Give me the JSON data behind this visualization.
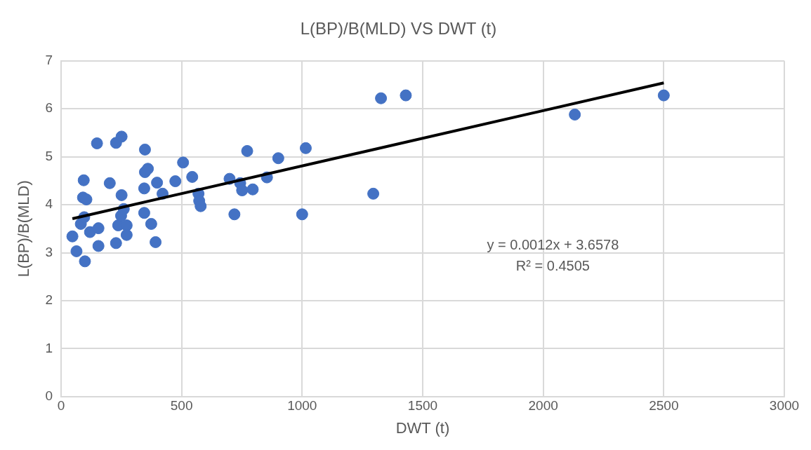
{
  "chart_data": {
    "type": "scatter",
    "title": "L(BP)/B(MLD) VS DWT (t)",
    "xlabel": "DWT (t)",
    "ylabel": "L(BP)/B(MLD)",
    "xlim": [
      0,
      3000
    ],
    "xticks": [
      0,
      500,
      1000,
      1500,
      2000,
      2500,
      3000
    ],
    "ylim": [
      0,
      7
    ],
    "yticks": [
      0,
      1,
      2,
      3,
      4,
      5,
      6,
      7
    ],
    "grid": true,
    "marker": "circle",
    "series": [
      {
        "color": "#4472c4",
        "x": [
          47,
          64,
          99,
          82,
          96,
          94,
          91,
          105,
          120,
          155,
          155,
          149,
          202,
          228,
          251,
          228,
          237,
          251,
          249,
          260,
          272,
          272,
          348,
          345,
          348,
          360,
          345,
          374,
          392,
          398,
          421,
          474,
          506,
          544,
          570,
          573,
          579,
          699,
          719,
          743,
          751,
          772,
          795,
          854,
          901,
          1000,
          1015,
          1295,
          1327,
          1430,
          2131,
          2500
        ],
        "values": [
          3.34,
          3.03,
          2.82,
          3.6,
          3.74,
          4.51,
          4.15,
          4.11,
          3.43,
          3.51,
          3.14,
          5.28,
          4.45,
          5.29,
          5.42,
          3.2,
          3.57,
          4.2,
          3.77,
          3.91,
          3.57,
          3.37,
          5.15,
          4.34,
          4.68,
          4.75,
          3.83,
          3.6,
          3.22,
          4.46,
          4.23,
          4.49,
          4.88,
          4.58,
          4.23,
          4.08,
          3.97,
          4.54,
          3.8,
          4.45,
          4.3,
          5.12,
          4.32,
          4.57,
          4.97,
          3.8,
          5.18,
          4.23,
          6.22,
          6.28,
          5.88,
          6.28
        ]
      },
      {
        "type": "line",
        "color": "#000000",
        "marker": "none",
        "x": [
          47,
          2500
        ],
        "values": [
          3.71,
          6.54
        ]
      }
    ],
    "annotations": [
      "y = 0.0012x + 3.6578",
      "R² = 0.4505"
    ]
  }
}
